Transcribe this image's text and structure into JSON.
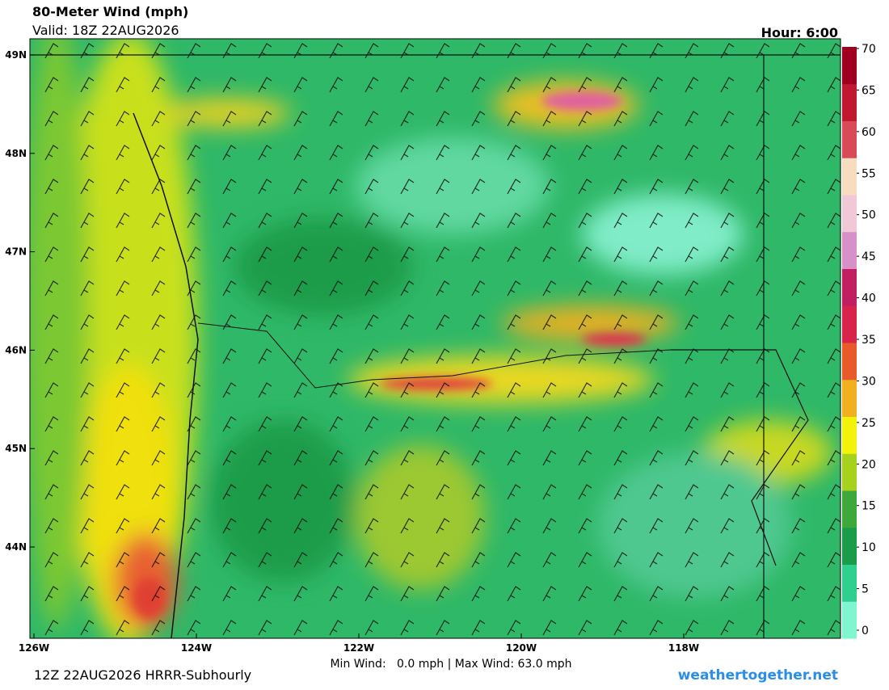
{
  "header": {
    "title": "80-Meter Wind (mph)",
    "valid": "Valid: 18Z 22AUG2026",
    "hour": "Hour: 6:00"
  },
  "map": {
    "lat_labels": [
      "49N",
      "48N",
      "47N",
      "46N",
      "45N",
      "44N"
    ],
    "lon_labels": [
      "126W",
      "124W",
      "122W",
      "120W",
      "118W"
    ]
  },
  "colorbar": {
    "ticks": [
      0,
      5,
      10,
      15,
      20,
      25,
      30,
      35,
      40,
      45,
      50,
      55,
      60,
      65,
      70
    ],
    "colors": [
      "#7ff5d0",
      "#2fcf8e",
      "#1a9c4a",
      "#3fa83a",
      "#a6d21e",
      "#f2f20a",
      "#f0b020",
      "#e85a2a",
      "#d8244a",
      "#c02060",
      "#d890c8",
      "#f0c8d8",
      "#f8dcc0",
      "#d84a58",
      "#c01830",
      "#a00020"
    ]
  },
  "footer": {
    "run": "12Z 22AUG2026 HRRR-Subhourly",
    "minmax": "Min Wind:   0.0 mph | Max Wind: 63.0 mph",
    "site": "weathertogether.net"
  }
}
